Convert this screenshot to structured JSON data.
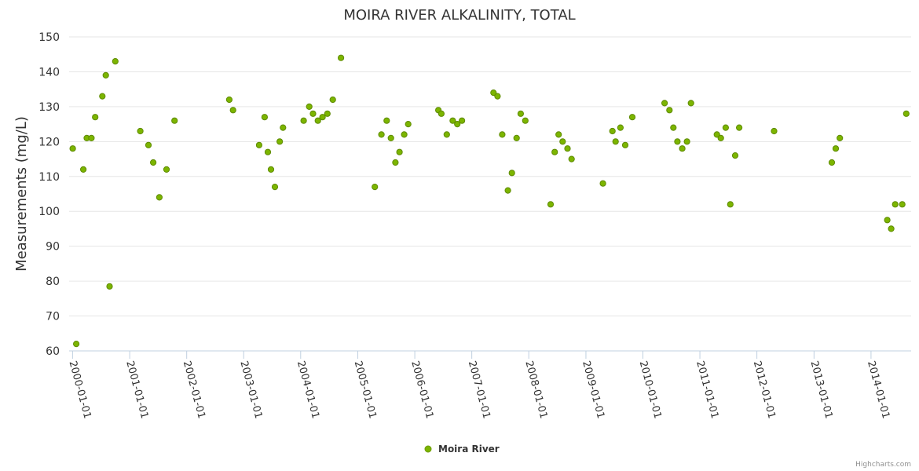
{
  "chart_data": {
    "type": "scatter",
    "title": "MOIRA RIVER ALKALINITY, TOTAL",
    "ylabel": "Measurements (mg/L)",
    "xlabel": "",
    "ylim": [
      60,
      150
    ],
    "yticks": [
      60,
      70,
      80,
      90,
      100,
      110,
      120,
      130,
      140,
      150
    ],
    "xlim": [
      "1999-12-10",
      "2014-09-15"
    ],
    "xticks": [
      "2000-01-01",
      "2001-01-01",
      "2002-01-01",
      "2003-01-01",
      "2004-01-01",
      "2005-01-01",
      "2006-01-01",
      "2007-01-01",
      "2008-01-01",
      "2009-01-01",
      "2010-01-01",
      "2011-01-01",
      "2012-01-01",
      "2013-01-01",
      "2014-01-01"
    ],
    "grid": true,
    "legend_position": "bottom-center",
    "color": "#7cb500",
    "series": [
      {
        "name": "Moira River",
        "points": [
          [
            "2000-01-02",
            118
          ],
          [
            "2000-01-25",
            62
          ],
          [
            "2000-03-10",
            112
          ],
          [
            "2000-04-01",
            121
          ],
          [
            "2000-05-01",
            121
          ],
          [
            "2000-05-25",
            127
          ],
          [
            "2000-07-10",
            133
          ],
          [
            "2000-08-01",
            139
          ],
          [
            "2000-08-25",
            78.5
          ],
          [
            "2000-10-01",
            143
          ],
          [
            "2001-03-10",
            123
          ],
          [
            "2001-05-01",
            119
          ],
          [
            "2001-06-01",
            114
          ],
          [
            "2001-07-10",
            104
          ],
          [
            "2001-08-25",
            112
          ],
          [
            "2001-10-15",
            126
          ],
          [
            "2002-10-01",
            132
          ],
          [
            "2002-10-25",
            129
          ],
          [
            "2003-04-10",
            119
          ],
          [
            "2003-05-15",
            127
          ],
          [
            "2003-06-05",
            117
          ],
          [
            "2003-06-25",
            112
          ],
          [
            "2003-07-20",
            107
          ],
          [
            "2003-08-20",
            120
          ],
          [
            "2003-09-10",
            124
          ],
          [
            "2004-01-20",
            126
          ],
          [
            "2004-02-25",
            130
          ],
          [
            "2004-03-20",
            128
          ],
          [
            "2004-04-20",
            126
          ],
          [
            "2004-05-20",
            127
          ],
          [
            "2004-06-20",
            128
          ],
          [
            "2004-07-25",
            132
          ],
          [
            "2004-09-15",
            144
          ],
          [
            "2005-04-20",
            107
          ],
          [
            "2005-06-01",
            122
          ],
          [
            "2005-07-05",
            126
          ],
          [
            "2005-08-01",
            121
          ],
          [
            "2005-08-30",
            114
          ],
          [
            "2005-09-25",
            117
          ],
          [
            "2005-10-25",
            122
          ],
          [
            "2005-11-20",
            125
          ],
          [
            "2006-06-01",
            129
          ],
          [
            "2006-06-20",
            128
          ],
          [
            "2006-07-25",
            122
          ],
          [
            "2006-09-01",
            126
          ],
          [
            "2006-09-30",
            125
          ],
          [
            "2006-10-30",
            126
          ],
          [
            "2007-05-20",
            134
          ],
          [
            "2007-06-15",
            133
          ],
          [
            "2007-07-15",
            122
          ],
          [
            "2007-08-20",
            106
          ],
          [
            "2007-09-15",
            111
          ],
          [
            "2007-10-15",
            121
          ],
          [
            "2007-11-10",
            128
          ],
          [
            "2007-12-10",
            126
          ],
          [
            "2008-05-20",
            102
          ],
          [
            "2008-06-15",
            117
          ],
          [
            "2008-07-10",
            122
          ],
          [
            "2008-08-05",
            120
          ],
          [
            "2008-09-05",
            118
          ],
          [
            "2008-10-01",
            115
          ],
          [
            "2009-04-20",
            108
          ],
          [
            "2009-06-20",
            123
          ],
          [
            "2009-07-10",
            120
          ],
          [
            "2009-08-10",
            124
          ],
          [
            "2009-09-10",
            119
          ],
          [
            "2009-10-25",
            127
          ],
          [
            "2010-05-20",
            131
          ],
          [
            "2010-06-20",
            129
          ],
          [
            "2010-07-15",
            124
          ],
          [
            "2010-08-10",
            120
          ],
          [
            "2010-09-10",
            118
          ],
          [
            "2010-10-10",
            120
          ],
          [
            "2010-11-05",
            131
          ],
          [
            "2011-04-20",
            122
          ],
          [
            "2011-05-15",
            121
          ],
          [
            "2011-06-15",
            124
          ],
          [
            "2011-07-15",
            102
          ],
          [
            "2011-08-15",
            116
          ],
          [
            "2011-09-10",
            124
          ],
          [
            "2012-04-20",
            123
          ],
          [
            "2013-04-25",
            114
          ],
          [
            "2013-05-20",
            118
          ],
          [
            "2013-06-15",
            121
          ],
          [
            "2014-04-15",
            97.5
          ],
          [
            "2014-05-10",
            95
          ],
          [
            "2014-06-05",
            102
          ],
          [
            "2014-07-20",
            102
          ],
          [
            "2014-08-15",
            128
          ]
        ]
      }
    ],
    "credits": "Highcharts.com"
  }
}
